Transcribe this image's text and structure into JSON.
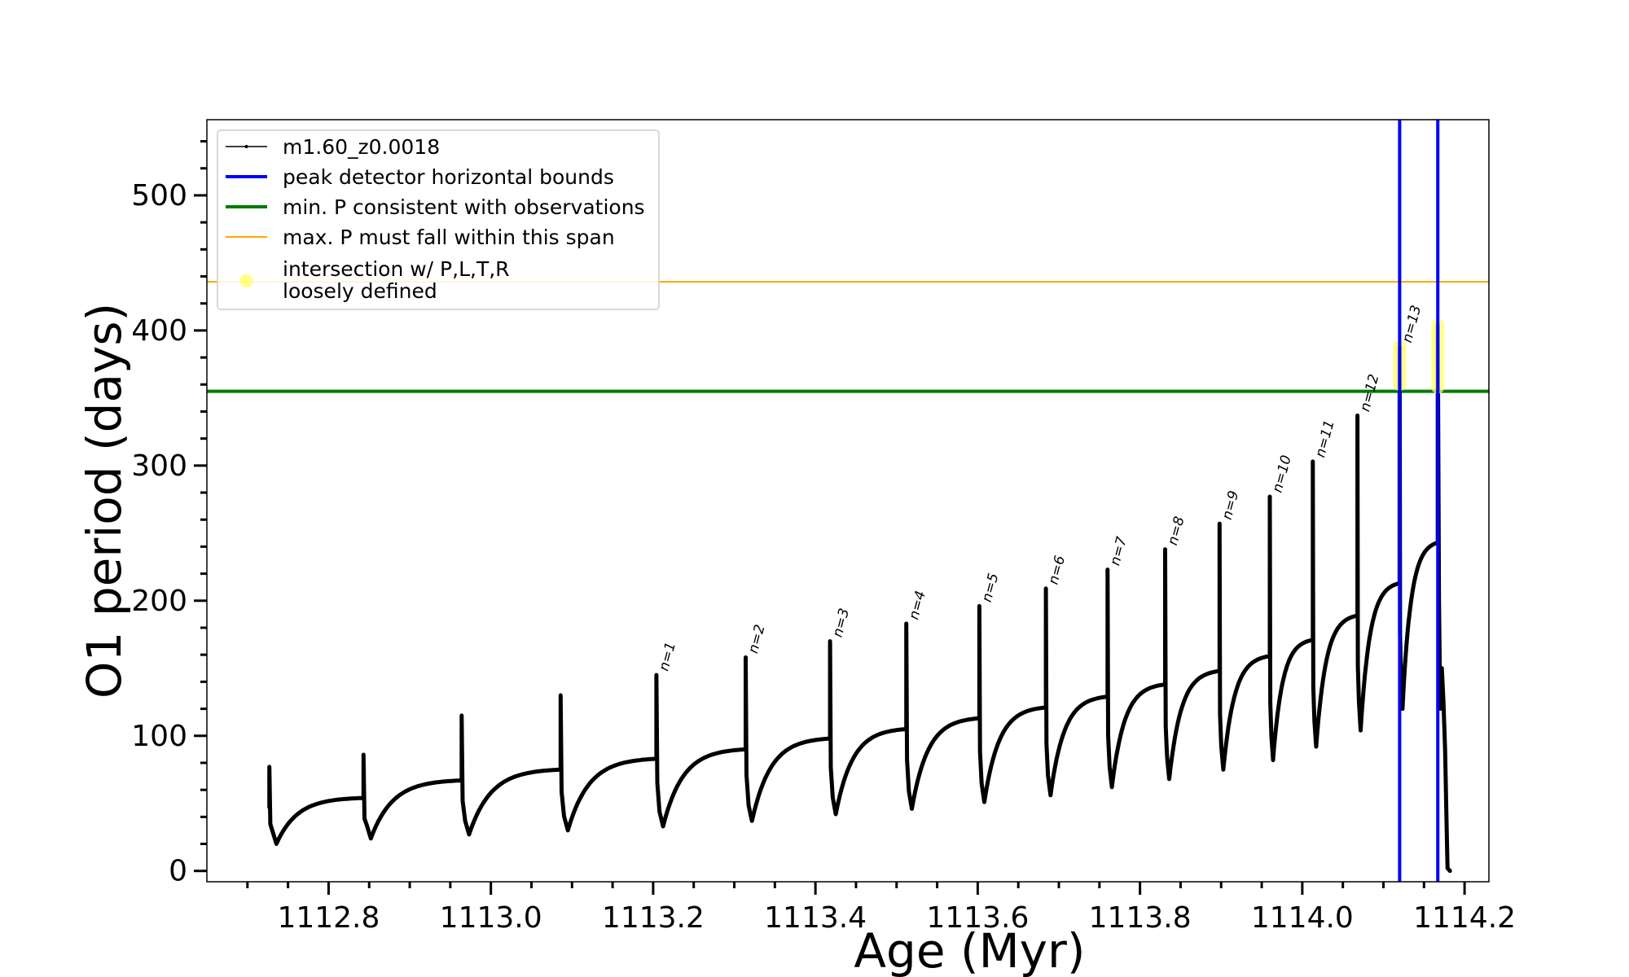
{
  "chart_data": {
    "type": "line",
    "title": "",
    "xlabel": "Age (Myr)",
    "ylabel": "O1 period (days)",
    "xlim": [
      1112.65,
      1114.23
    ],
    "ylim": [
      -8,
      556
    ],
    "grid": false,
    "legend_position": "upper-left",
    "xticks": [
      "1112.8",
      "1113.0",
      "1113.2",
      "1113.4",
      "1113.6",
      "1113.8",
      "1114.0",
      "1114.2"
    ],
    "yticks": [
      "0",
      "100",
      "200",
      "300",
      "400",
      "500"
    ],
    "colors": {
      "series": "#000000",
      "bounds": "#0000ff",
      "min_p": "#007a00",
      "max_p": "#ffa500",
      "intersection": "#ffff66"
    },
    "legend": [
      {
        "label": "m1.60_z0.0018",
        "kind": "series"
      },
      {
        "label": "peak detector horizontal bounds",
        "kind": "bounds"
      },
      {
        "label": "min. P consistent with observations",
        "kind": "min_p"
      },
      {
        "label": "max. P must fall within this span",
        "kind": "max_p"
      },
      {
        "label": "intersection w/ P,L,T,R",
        "label2": "loosely defined",
        "kind": "intersection"
      }
    ],
    "horizontal_lines": [
      {
        "name": "min. P consistent with observations",
        "y": 355,
        "color_key": "min_p"
      },
      {
        "name": "max. P must fall within this span",
        "y": 436,
        "color_key": "max_p"
      }
    ],
    "vertical_lines": [
      {
        "name": "peak detector horizontal bounds",
        "x": 1114.12,
        "color_key": "bounds"
      },
      {
        "name": "peak detector horizontal bounds",
        "x": 1114.167,
        "color_key": "bounds"
      }
    ],
    "intersections": [
      {
        "x": 1114.12,
        "y_from": 360,
        "y_to": 388
      },
      {
        "x": 1114.167,
        "y_from": 358,
        "y_to": 404
      }
    ],
    "series": [
      {
        "name": "m1.60_z0.0018",
        "cycles": [
          {
            "x_start": 1112.727,
            "x_end": 1112.843,
            "spike": 77,
            "end": 54,
            "trough": 20
          },
          {
            "x_start": 1112.843,
            "x_end": 1112.964,
            "spike": 86,
            "end": 67,
            "trough": 24
          },
          {
            "x_start": 1112.964,
            "x_end": 1113.086,
            "spike": 115,
            "end": 75,
            "trough": 27
          },
          {
            "x_start": 1113.086,
            "x_end": 1113.204,
            "spike": 130,
            "end": 83,
            "trough": 30
          },
          {
            "x_start": 1113.204,
            "x_end": 1113.314,
            "spike": 145,
            "end": 90,
            "trough": 33
          },
          {
            "x_start": 1113.314,
            "x_end": 1113.418,
            "spike": 158,
            "end": 98,
            "trough": 37
          },
          {
            "x_start": 1113.418,
            "x_end": 1113.512,
            "spike": 170,
            "end": 105,
            "trough": 42
          },
          {
            "x_start": 1113.512,
            "x_end": 1113.602,
            "spike": 183,
            "end": 113,
            "trough": 46
          },
          {
            "x_start": 1113.602,
            "x_end": 1113.684,
            "spike": 196,
            "end": 121,
            "trough": 51
          },
          {
            "x_start": 1113.684,
            "x_end": 1113.76,
            "spike": 209,
            "end": 129,
            "trough": 56
          },
          {
            "x_start": 1113.76,
            "x_end": 1113.831,
            "spike": 223,
            "end": 138,
            "trough": 62
          },
          {
            "x_start": 1113.831,
            "x_end": 1113.898,
            "spike": 238,
            "end": 148,
            "trough": 68
          },
          {
            "x_start": 1113.898,
            "x_end": 1113.96,
            "spike": 257,
            "end": 159,
            "trough": 75
          },
          {
            "x_start": 1113.96,
            "x_end": 1114.013,
            "spike": 277,
            "end": 171,
            "trough": 82
          },
          {
            "x_start": 1114.013,
            "x_end": 1114.068,
            "spike": 303,
            "end": 189,
            "trough": 92
          },
          {
            "x_start": 1114.068,
            "x_end": 1114.12,
            "spike": 337,
            "end": 213,
            "trough": 104
          },
          {
            "x_start": 1114.12,
            "x_end": 1114.167,
            "spike": 388,
            "end": 243,
            "trough": 120
          }
        ],
        "tail": {
          "x_start": 1114.167,
          "spike": 404,
          "peak_x": 1114.172,
          "peak": 150,
          "x_end": 1114.182
        }
      }
    ],
    "peak_labels": [
      {
        "text": "n=1",
        "x": 1113.204,
        "y": 145
      },
      {
        "text": "n=2",
        "x": 1113.314,
        "y": 158
      },
      {
        "text": "n=3",
        "x": 1113.418,
        "y": 170
      },
      {
        "text": "n=4",
        "x": 1113.512,
        "y": 183
      },
      {
        "text": "n=5",
        "x": 1113.602,
        "y": 196
      },
      {
        "text": "n=6",
        "x": 1113.684,
        "y": 209
      },
      {
        "text": "n=7",
        "x": 1113.76,
        "y": 223
      },
      {
        "text": "n=8",
        "x": 1113.831,
        "y": 238
      },
      {
        "text": "n=9",
        "x": 1113.898,
        "y": 257
      },
      {
        "text": "n=10",
        "x": 1113.96,
        "y": 277
      },
      {
        "text": "n=11",
        "x": 1114.013,
        "y": 303
      },
      {
        "text": "n=12",
        "x": 1114.068,
        "y": 337
      },
      {
        "text": "n=13",
        "x": 1114.12,
        "y": 388
      }
    ]
  }
}
